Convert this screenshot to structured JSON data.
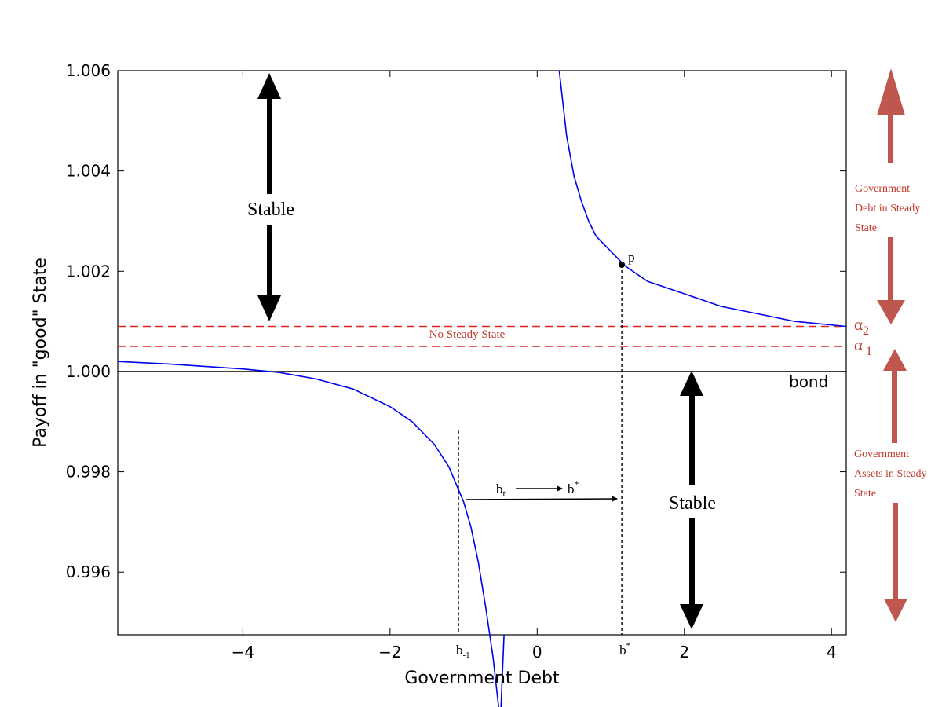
{
  "chart_data": {
    "type": "line",
    "xlabel": "Government Debt",
    "ylabel": "Payoff in \"good\" State",
    "xlim": [
      -5.7,
      4.2
    ],
    "ylim": [
      0.99475,
      1.006
    ],
    "x_ticks": [
      {
        "value": -4,
        "label": "−4"
      },
      {
        "value": -2,
        "label": "−2"
      },
      {
        "value": 0,
        "label": "0"
      },
      {
        "value": 2,
        "label": "2"
      },
      {
        "value": 4,
        "label": "4"
      }
    ],
    "y_ticks": [
      {
        "value": 0.996,
        "label": "0.996"
      },
      {
        "value": 0.998,
        "label": "0.998"
      },
      {
        "value": 1.0,
        "label": "1.000"
      },
      {
        "value": 1.002,
        "label": "1.002"
      },
      {
        "value": 1.004,
        "label": "1.004"
      },
      {
        "value": 1.006,
        "label": "1.006"
      }
    ],
    "series": [
      {
        "color": "#0000ee",
        "x": [
          0.3,
          0.4,
          0.5,
          0.6,
          0.7,
          0.8,
          1.0,
          1.2,
          1.5,
          2.0,
          2.5,
          3.0,
          3.5,
          4.2
        ],
        "y": [
          1.006,
          1.0047,
          1.0039,
          1.0034,
          1.003,
          1.0027,
          1.0024,
          1.0021,
          1.0018,
          1.00155,
          1.0013,
          1.00115,
          1.001,
          1.0009
        ]
      },
      {
        "color": "#0000ee",
        "x": [
          -5.7,
          -5.0,
          -4.5,
          -4.0,
          -3.5,
          -3.0,
          -2.5,
          -2.0,
          -1.7,
          -1.4,
          -1.2,
          -1.0,
          -0.9,
          -0.8,
          -0.7,
          -0.6,
          -0.5,
          -0.45
        ],
        "y": [
          1.0002,
          1.00015,
          1.0001,
          1.00005,
          0.99998,
          0.99985,
          0.99965,
          0.9993,
          0.999,
          0.99855,
          0.9981,
          0.9974,
          0.9969,
          0.9962,
          0.9953,
          0.9943,
          0.993,
          0.99475
        ]
      }
    ],
    "hlines": [
      {
        "y": 1.0,
        "color": "#000000",
        "style": "solid",
        "label": "bond"
      },
      {
        "y": 1.0009,
        "color": "#dd2222",
        "style": "dashed",
        "label": "α",
        "sub": "2"
      },
      {
        "y": 1.0005,
        "color": "#dd2222",
        "style": "dashed",
        "label": "α",
        "sub": "1"
      }
    ],
    "point": {
      "x": 1.15,
      "y": 1.00213,
      "label": "p"
    },
    "vlines": [
      {
        "x": -1.07,
        "y_top": 0.99882,
        "label": "b",
        "sub": "-1"
      },
      {
        "x": 1.15,
        "y_top": 1.00213,
        "label": "b",
        "sup": "*"
      }
    ],
    "annotations": {
      "no_steady_state": "No Steady State",
      "stable_upper": "Stable",
      "stable_lower": "Stable",
      "bt": "b",
      "bt_sub": "t",
      "bstar": "b",
      "bstar_sup": "*",
      "gov_debt": [
        "Government",
        "Debt in Steady",
        "State"
      ],
      "gov_assets": [
        "Government",
        "Assets in Steady",
        "State"
      ]
    },
    "grid": false,
    "legend": "none"
  }
}
